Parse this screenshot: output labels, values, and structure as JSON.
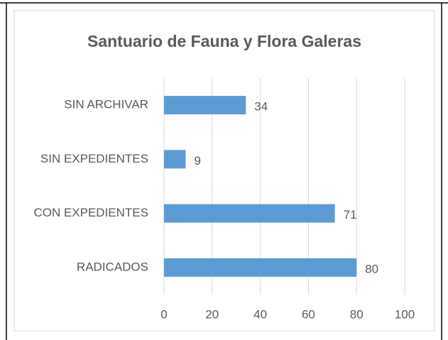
{
  "chart_data": {
    "type": "bar",
    "orientation": "horizontal",
    "title": "Santuario de Fauna y Flora Galeras",
    "categories": [
      "SIN ARCHIVAR",
      "SIN EXPEDIENTES",
      "CON EXPEDIENTES",
      "RADICADOS"
    ],
    "values": [
      34,
      9,
      71,
      80
    ],
    "color": "#5b9bd5",
    "xlim": [
      0,
      100
    ],
    "xticks": [
      0,
      20,
      40,
      60,
      80,
      100
    ],
    "grid": true
  }
}
